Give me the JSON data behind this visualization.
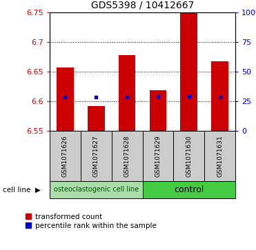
{
  "title": "GDS5398 / 10412667",
  "samples": [
    "GSM1071626",
    "GSM1071627",
    "GSM1071628",
    "GSM1071629",
    "GSM1071630",
    "GSM1071631"
  ],
  "bar_bottoms": [
    6.55,
    6.55,
    6.55,
    6.55,
    6.55,
    6.55
  ],
  "bar_tops": [
    6.657,
    6.592,
    6.678,
    6.619,
    6.75,
    6.667
  ],
  "percentile_values": [
    6.607,
    6.607,
    6.607,
    6.608,
    6.608,
    6.607
  ],
  "ylim": [
    6.55,
    6.75
  ],
  "yticks_left": [
    6.55,
    6.6,
    6.65,
    6.7,
    6.75
  ],
  "ytick_labels_left": [
    "6.55",
    "6.6",
    "6.65",
    "6.7",
    "6.75"
  ],
  "ytick_labels_right": [
    "0",
    "25",
    "50",
    "75",
    "100%"
  ],
  "grid_lines": [
    6.6,
    6.65,
    6.7
  ],
  "bar_color": "#cc0000",
  "percentile_color": "#0000cc",
  "group1_label": "osteoclastogenic cell line",
  "group2_label": "control",
  "group1_color": "#aaddaa",
  "group2_color": "#44cc44",
  "sample_box_color": "#cccccc",
  "legend_bar_label": "transformed count",
  "legend_pct_label": "percentile rank within the sample",
  "bar_width": 0.55,
  "left_axis_color": "#cc0000",
  "right_axis_color": "#0000cc",
  "title_fontsize": 10,
  "tick_fontsize": 8,
  "sample_fontsize": 6.5,
  "group_label1_fontsize": 7,
  "group_label2_fontsize": 9,
  "legend_fontsize": 7.5
}
